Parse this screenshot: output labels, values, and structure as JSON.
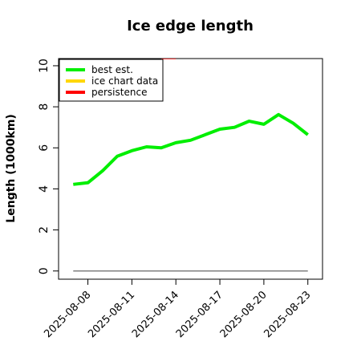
{
  "chart_data": {
    "type": "line",
    "title": "Ice edge length",
    "y_label": "Length (1000km)",
    "x": [
      "2025-08-07",
      "2025-08-08",
      "2025-08-09",
      "2025-08-10",
      "2025-08-11",
      "2025-08-12",
      "2025-08-13",
      "2025-08-14",
      "2025-08-15",
      "2025-08-16",
      "2025-08-17",
      "2025-08-18",
      "2025-08-19",
      "2025-08-20",
      "2025-08-21",
      "2025-08-22",
      "2025-08-23"
    ],
    "series": [
      {
        "name": "best est.",
        "color": "#00ee00",
        "values": [
          4.22,
          4.3,
          4.88,
          5.59,
          5.86,
          6.05,
          6.0,
          6.25,
          6.37,
          6.64,
          6.91,
          7.0,
          7.3,
          7.15,
          7.62,
          7.2,
          6.64
        ]
      },
      {
        "name": "ice chart data",
        "color": "#ffd700",
        "values": [
          null,
          null,
          null,
          null,
          null,
          null,
          null,
          null,
          null,
          null,
          null,
          null,
          null,
          null,
          null,
          null,
          null
        ]
      },
      {
        "name": "persistence",
        "color": "#ff0000",
        "values": [
          null,
          null,
          null,
          null,
          null,
          null,
          10.4,
          10.4,
          null,
          null,
          null,
          null,
          null,
          null,
          null,
          null,
          null
        ]
      }
    ],
    "hline": {
      "value": 0,
      "color": "#808080",
      "x": [
        "2025-08-07",
        "2025-08-23"
      ]
    },
    "xlim": [
      "2025-08-06",
      "2025-08-24"
    ],
    "xticks": [
      "2025-08-08",
      "2025-08-11",
      "2025-08-14",
      "2025-08-17",
      "2025-08-20",
      "2025-08-23"
    ],
    "ylim": [
      -0.4,
      10.35
    ],
    "yticks": [
      0,
      2,
      4,
      6,
      8,
      10
    ],
    "legend": "top-left"
  }
}
